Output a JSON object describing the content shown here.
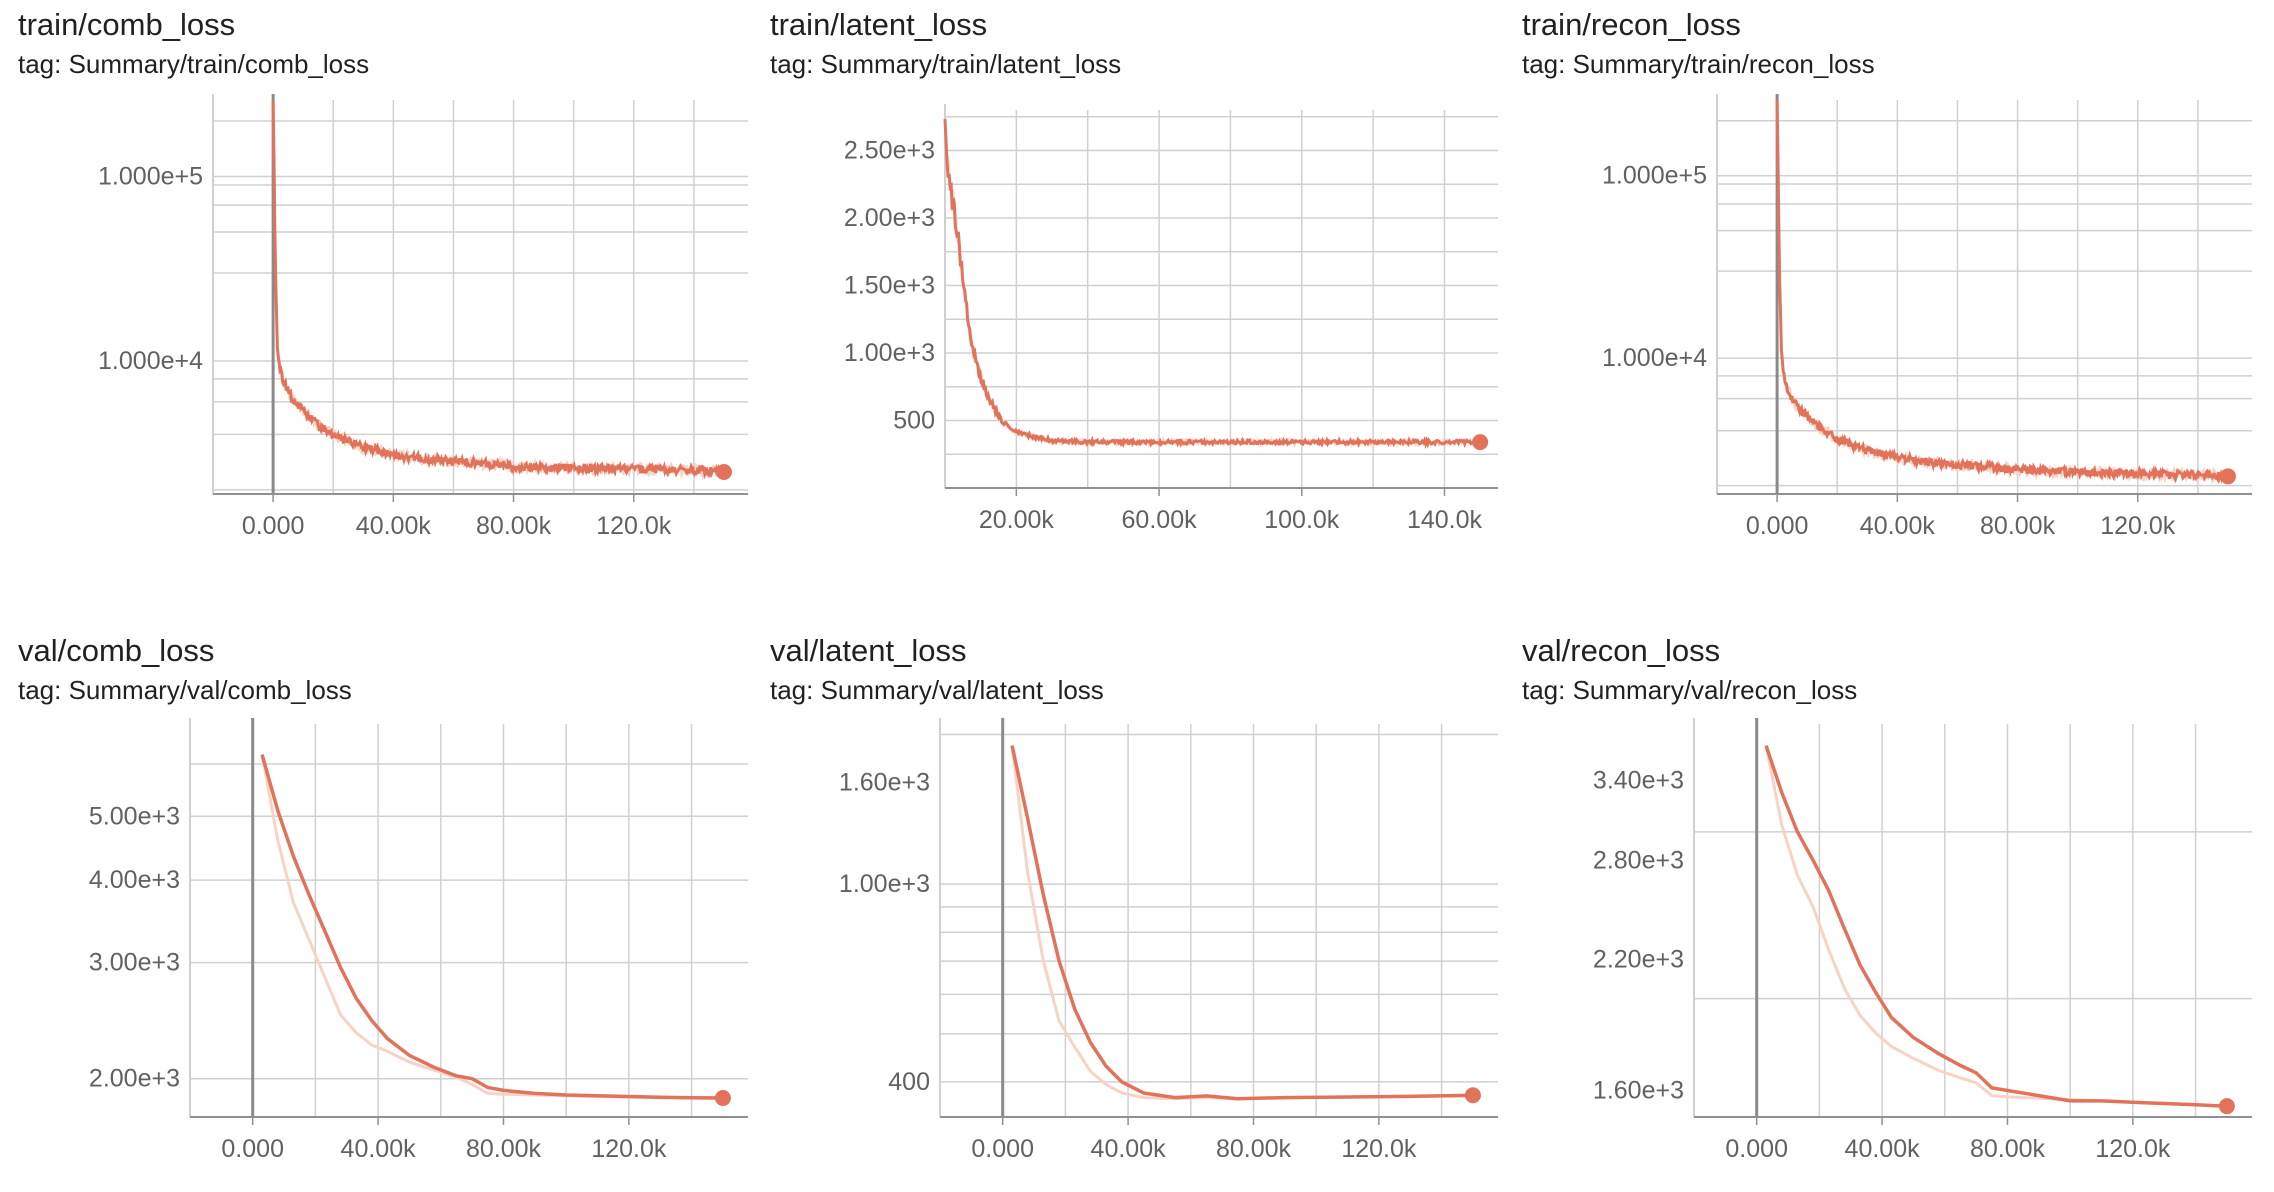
{
  "colors": {
    "line": "#e2735a",
    "line_light": "#f7d3c6",
    "grid": "#d0d0d0",
    "axis": "#909090",
    "zero_line": "#8a8a8a"
  },
  "panels": [
    {
      "title": "train/comb_loss",
      "tag": "tag: Summary/train/comb_loss"
    },
    {
      "title": "train/latent_loss",
      "tag": "tag: Summary/train/latent_loss"
    },
    {
      "title": "train/recon_loss",
      "tag": "tag: Summary/train/recon_loss"
    },
    {
      "title": "val/comb_loss",
      "tag": "tag: Summary/val/comb_loss"
    },
    {
      "title": "val/latent_loss",
      "tag": "tag: Summary/val/latent_loss"
    },
    {
      "title": "val/recon_loss",
      "tag": "tag: Summary/val/recon_loss"
    }
  ],
  "chart_data": [
    {
      "type": "line",
      "title": "train/comb_loss",
      "subtitle": "tag: Summary/train/comb_loss",
      "yscale": "log",
      "xlim": [
        -20000,
        158000
      ],
      "ylim": [
        1900,
        260000
      ],
      "xticks": [
        {
          "v": 0,
          "label": "0.000"
        },
        {
          "v": 40000,
          "label": "40.00k"
        },
        {
          "v": 80000,
          "label": "80.00k"
        },
        {
          "v": 120000,
          "label": "120.0k"
        }
      ],
      "yticks": [
        {
          "v": 100000,
          "label": "1.000e+5"
        },
        {
          "v": 10000,
          "label": "1.000e+4"
        }
      ],
      "grid": true,
      "x_zero_line": true,
      "legend": "none",
      "series": [
        {
          "x": [
            0,
            300,
            800,
            1500,
            3000,
            6000,
            10000,
            15000,
            20000,
            30000,
            40000,
            50000,
            60000,
            70000,
            80000,
            90000,
            100000,
            110000,
            120000,
            130000,
            140000,
            150000
          ],
          "values": [
            250000,
            120000,
            30000,
            11000,
            8000,
            6400,
            5300,
            4500,
            4000,
            3400,
            3100,
            2950,
            2850,
            2800,
            2700,
            2650,
            2650,
            2620,
            2600,
            2580,
            2560,
            2500
          ],
          "noise": 0.05,
          "end_marker": true
        }
      ]
    },
    {
      "type": "line",
      "title": "train/latent_loss",
      "subtitle": "tag: Summary/train/latent_loss",
      "yscale": "linear",
      "xlim": [
        0,
        155000
      ],
      "ylim": [
        0,
        2800
      ],
      "xticks": [
        {
          "v": 20000,
          "label": "20.00k"
        },
        {
          "v": 60000,
          "label": "60.00k"
        },
        {
          "v": 100000,
          "label": "100.0k"
        },
        {
          "v": 140000,
          "label": "140.0k"
        }
      ],
      "yticks": [
        {
          "v": 2500,
          "label": "2.50e+3"
        },
        {
          "v": 2000,
          "label": "2.00e+3"
        },
        {
          "v": 1500,
          "label": "1.50e+3"
        },
        {
          "v": 1000,
          "label": "1.00e+3"
        },
        {
          "v": 500,
          "label": "500"
        }
      ],
      "grid": true,
      "x_zero_line": false,
      "legend": "none",
      "series": [
        {
          "x": [
            0,
            1000,
            2000,
            3000,
            4000,
            5000,
            6000,
            7000,
            8000,
            9000,
            10000,
            12000,
            14000,
            16000,
            18000,
            20000,
            25000,
            30000,
            40000,
            60000,
            100000,
            150000
          ],
          "values": [
            2650,
            2350,
            2150,
            1980,
            1780,
            1540,
            1350,
            1140,
            1030,
            910,
            820,
            680,
            580,
            490,
            450,
            410,
            380,
            350,
            340,
            340,
            340,
            340
          ],
          "noise": 0.04,
          "end_marker": true
        }
      ]
    },
    {
      "type": "line",
      "title": "train/recon_loss",
      "subtitle": "tag: Summary/train/recon_loss",
      "yscale": "log",
      "xlim": [
        -20000,
        158000
      ],
      "ylim": [
        1800,
        260000
      ],
      "xticks": [
        {
          "v": 0,
          "label": "0.000"
        },
        {
          "v": 40000,
          "label": "40.00k"
        },
        {
          "v": 80000,
          "label": "80.00k"
        },
        {
          "v": 120000,
          "label": "120.0k"
        }
      ],
      "yticks": [
        {
          "v": 100000,
          "label": "1.000e+5"
        },
        {
          "v": 10000,
          "label": "1.000e+4"
        }
      ],
      "grid": true,
      "x_zero_line": true,
      "legend": "none",
      "series": [
        {
          "x": [
            0,
            300,
            800,
            1500,
            3000,
            6000,
            10000,
            15000,
            20000,
            30000,
            40000,
            50000,
            60000,
            70000,
            80000,
            90000,
            100000,
            110000,
            120000,
            130000,
            140000,
            150000
          ],
          "values": [
            250000,
            120000,
            30000,
            10000,
            7000,
            5600,
            4800,
            4100,
            3600,
            3100,
            2850,
            2700,
            2600,
            2550,
            2450,
            2400,
            2380,
            2350,
            2330,
            2310,
            2300,
            2250
          ],
          "noise": 0.05,
          "end_marker": true
        }
      ]
    },
    {
      "type": "line",
      "title": "val/comb_loss",
      "subtitle": "tag: Summary/val/comb_loss",
      "yscale": "log",
      "xlim": [
        -20000,
        158000
      ],
      "ylim": [
        1750,
        6900
      ],
      "xticks": [
        {
          "v": 0,
          "label": "0.000"
        },
        {
          "v": 40000,
          "label": "40.00k"
        },
        {
          "v": 80000,
          "label": "80.00k"
        },
        {
          "v": 120000,
          "label": "120.0k"
        }
      ],
      "yticks": [
        {
          "v": 5000,
          "label": "5.00e+3"
        },
        {
          "v": 4000,
          "label": "4.00e+3"
        },
        {
          "v": 3000,
          "label": "3.00e+3"
        },
        {
          "v": 2000,
          "label": "2.00e+3"
        }
      ],
      "grid": true,
      "x_zero_line": true,
      "legend": "none",
      "series": [
        {
          "x": [
            3000,
            8000,
            13000,
            18000,
            23000,
            28000,
            33000,
            38000,
            43000,
            50000,
            58000,
            65000,
            70000,
            75000,
            80000,
            90000,
            100000,
            110000,
            120000,
            130000,
            140000,
            150000
          ],
          "values": [
            6200,
            5100,
            4350,
            3800,
            3350,
            2950,
            2650,
            2450,
            2300,
            2170,
            2080,
            2020,
            2000,
            1940,
            1920,
            1900,
            1890,
            1885,
            1880,
            1875,
            1872,
            1870
          ],
          "light": [
            6200,
            4600,
            3700,
            3250,
            2850,
            2500,
            2350,
            2250,
            2200,
            2120,
            2060,
            2010,
            1960,
            1900,
            1895,
            1890,
            1885,
            1880,
            1875,
            1872,
            1870,
            1868
          ],
          "end_marker": true
        }
      ]
    },
    {
      "type": "line",
      "title": "val/latent_loss",
      "subtitle": "tag: Summary/val/latent_loss",
      "yscale": "log",
      "xlim": [
        -20000,
        158000
      ],
      "ylim": [
        340,
        2100
      ],
      "xticks": [
        {
          "v": 0,
          "label": "0.000"
        },
        {
          "v": 40000,
          "label": "40.00k"
        },
        {
          "v": 80000,
          "label": "80.00k"
        },
        {
          "v": 120000,
          "label": "120.0k"
        }
      ],
      "yticks": [
        {
          "v": 1600,
          "label": "1.60e+3"
        },
        {
          "v": 1000,
          "label": "1.00e+3"
        },
        {
          "v": 400,
          "label": "400"
        }
      ],
      "grid": true,
      "x_zero_line": true,
      "legend": "none",
      "series": [
        {
          "x": [
            3000,
            8000,
            13000,
            18000,
            23000,
            28000,
            33000,
            38000,
            45000,
            55000,
            65000,
            75000,
            90000,
            110000,
            130000,
            150000
          ],
          "values": [
            1900,
            1350,
            950,
            700,
            560,
            480,
            430,
            400,
            380,
            372,
            375,
            370,
            372,
            373,
            374,
            376
          ],
          "light": [
            1900,
            1050,
            700,
            530,
            470,
            420,
            395,
            380,
            372,
            370,
            372,
            370,
            372,
            373,
            374,
            375
          ],
          "end_marker": true
        }
      ]
    },
    {
      "type": "line",
      "title": "val/recon_loss",
      "subtitle": "tag: Summary/val/recon_loss",
      "yscale": "log",
      "xlim": [
        -20000,
        158000
      ],
      "ylim": [
        1500,
        3900
      ],
      "xticks": [
        {
          "v": 0,
          "label": "0.000"
        },
        {
          "v": 40000,
          "label": "40.00k"
        },
        {
          "v": 80000,
          "label": "80.00k"
        },
        {
          "v": 120000,
          "label": "120.0k"
        }
      ],
      "yticks": [
        {
          "v": 3400,
          "label": "3.40e+3"
        },
        {
          "v": 2800,
          "label": "2.80e+3"
        },
        {
          "v": 2200,
          "label": "2.20e+3"
        },
        {
          "v": 1600,
          "label": "1.60e+3"
        }
      ],
      "grid": true,
      "x_zero_line": true,
      "legend": "none",
      "series": [
        {
          "x": [
            3000,
            8000,
            13000,
            18000,
            23000,
            28000,
            33000,
            38000,
            43000,
            50000,
            58000,
            65000,
            70000,
            75000,
            80000,
            90000,
            100000,
            110000,
            120000,
            130000,
            140000,
            150000
          ],
          "values": [
            3700,
            3300,
            3000,
            2800,
            2600,
            2370,
            2170,
            2030,
            1910,
            1820,
            1750,
            1700,
            1670,
            1610,
            1600,
            1580,
            1560,
            1560,
            1555,
            1550,
            1545,
            1540
          ],
          "light": [
            3700,
            3050,
            2700,
            2500,
            2250,
            2050,
            1920,
            1840,
            1780,
            1730,
            1680,
            1650,
            1630,
            1580,
            1575,
            1570,
            1565,
            1560,
            1555,
            1550,
            1545,
            1540
          ],
          "end_marker": true
        }
      ]
    }
  ]
}
